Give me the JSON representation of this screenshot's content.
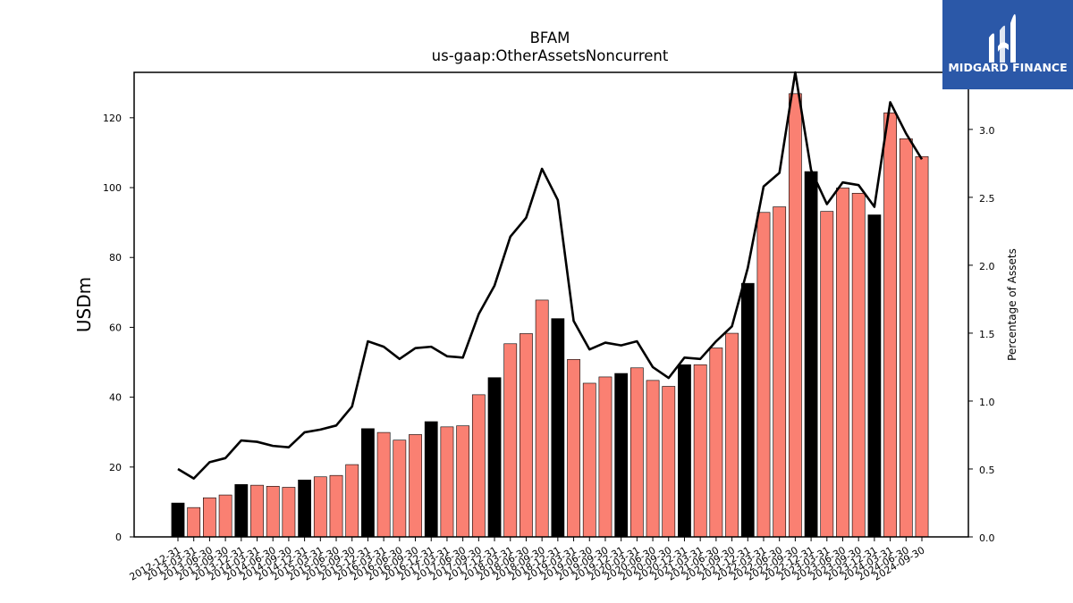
{
  "branding": {
    "logo_text": "MIDGARD FINANCE",
    "logo_bg": "#2b58a8"
  },
  "chart_data": {
    "type": "bar",
    "title": "BFAM",
    "subtitle": "us-gaap:OtherAssetsNoncurrent",
    "ylabel": "USDm",
    "y2label": "Percentage of Assets",
    "ylim": [
      0,
      133
    ],
    "y2lim": [
      0,
      3.42
    ],
    "yticks": [
      0,
      20,
      40,
      60,
      80,
      100,
      120
    ],
    "y2ticks": [
      "0.0",
      "0.5",
      "1.0",
      "1.5",
      "2.0",
      "2.5",
      "3.0"
    ],
    "grid": false,
    "colors": {
      "q4_bar": "#000000",
      "other_bar": "#fa8072",
      "line": "#000000"
    },
    "categories": [
      "2012-12-31",
      "2013-03-31",
      "2013-06-30",
      "2013-09-30",
      "2013-12-31",
      "2014-03-31",
      "2014-06-30",
      "2014-09-30",
      "2014-12-31",
      "2015-03-31",
      "2015-06-30",
      "2015-09-30",
      "2015-12-31",
      "2016-03-31",
      "2016-06-30",
      "2016-09-30",
      "2016-12-31",
      "2017-03-31",
      "2017-06-30",
      "2017-09-30",
      "2017-12-31",
      "2018-03-31",
      "2018-06-30",
      "2018-09-30",
      "2018-12-31",
      "2019-03-31",
      "2019-06-30",
      "2019-09-30",
      "2019-12-31",
      "2020-03-31",
      "2020-06-30",
      "2020-09-30",
      "2020-12-31",
      "2021-03-31",
      "2021-06-30",
      "2021-09-30",
      "2021-12-31",
      "2022-03-31",
      "2022-06-30",
      "2022-09-30",
      "2022-12-31",
      "2023-03-31",
      "2023-06-30",
      "2023-09-30",
      "2023-12-31",
      "2024-03-31",
      "2024-06-30",
      "2024-09-30"
    ],
    "series": [
      {
        "name": "",
        "type": "bar",
        "axis": "left",
        "values": [
          9.7,
          8.4,
          11.2,
          12.0,
          15.0,
          14.8,
          14.5,
          14.2,
          16.3,
          17.2,
          17.6,
          20.7,
          31.0,
          29.9,
          27.7,
          29.3,
          33.0,
          31.5,
          31.8,
          40.7,
          45.6,
          55.3,
          58.2,
          67.8,
          62.5,
          50.8,
          44.0,
          45.8,
          46.8,
          48.4,
          44.8,
          43.1,
          49.3,
          49.3,
          54.1,
          58.3,
          72.6,
          92.9,
          94.5,
          126.9,
          104.6,
          93.2,
          99.9,
          98.4,
          92.2,
          121.4,
          114.0,
          108.9
        ]
      },
      {
        "name": "",
        "type": "line",
        "axis": "right",
        "values": [
          0.5,
          0.43,
          0.55,
          0.58,
          0.71,
          0.7,
          0.67,
          0.66,
          0.77,
          0.79,
          0.82,
          0.96,
          1.44,
          1.4,
          1.31,
          1.39,
          1.4,
          1.33,
          1.32,
          1.64,
          1.85,
          2.21,
          2.35,
          2.71,
          2.48,
          1.59,
          1.38,
          1.43,
          1.41,
          1.44,
          1.25,
          1.17,
          1.32,
          1.31,
          1.44,
          1.55,
          1.98,
          2.58,
          2.68,
          3.42,
          2.7,
          2.45,
          2.61,
          2.59,
          2.43,
          3.2,
          2.97,
          2.78
        ]
      }
    ]
  }
}
